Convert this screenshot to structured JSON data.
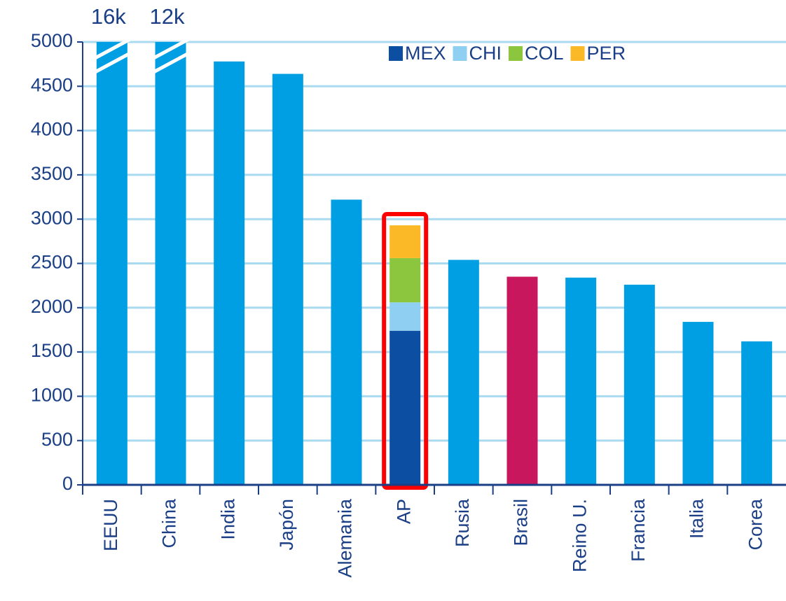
{
  "chart_data": {
    "type": "bar",
    "categories": [
      "EEUU",
      "China",
      "India",
      "Japón",
      "Alemania",
      "AP",
      "Rusia",
      "Brasil",
      "Reino U.",
      "Francia",
      "Italia",
      "Corea"
    ],
    "values": [
      16000,
      12000,
      4780,
      4640,
      3220,
      null,
      2540,
      2350,
      2340,
      2260,
      1840,
      1620
    ],
    "value_labels": [
      "16k",
      "12k",
      null,
      null,
      null,
      null,
      null,
      null,
      null,
      null,
      null,
      null
    ],
    "color": "#009fe3",
    "highlight": {
      "category": "Brasil",
      "color": "#c8175d"
    },
    "box": {
      "category": "AP",
      "color": "#ff0000"
    },
    "series": [
      {
        "name": "MEX",
        "color": "#0b4ea2",
        "values": [
          null,
          null,
          null,
          null,
          null,
          1740,
          null,
          null,
          null,
          null,
          null,
          null
        ]
      },
      {
        "name": "CHI",
        "color": "#8fd0f2",
        "values": [
          null,
          null,
          null,
          null,
          null,
          320,
          null,
          null,
          null,
          null,
          null,
          null
        ]
      },
      {
        "name": "COL",
        "color": "#8cc63f",
        "values": [
          null,
          null,
          null,
          null,
          null,
          500,
          null,
          null,
          null,
          null,
          null,
          null
        ]
      },
      {
        "name": "PER",
        "color": "#fbb927",
        "values": [
          null,
          null,
          null,
          null,
          null,
          370,
          null,
          null,
          null,
          null,
          null,
          null
        ]
      }
    ],
    "ylim": [
      0,
      5000
    ],
    "yticks": [
      0,
      500,
      1000,
      1500,
      2000,
      2500,
      3000,
      3500,
      4000,
      4500,
      5000
    ],
    "grid": true,
    "legend": "top-right"
  }
}
